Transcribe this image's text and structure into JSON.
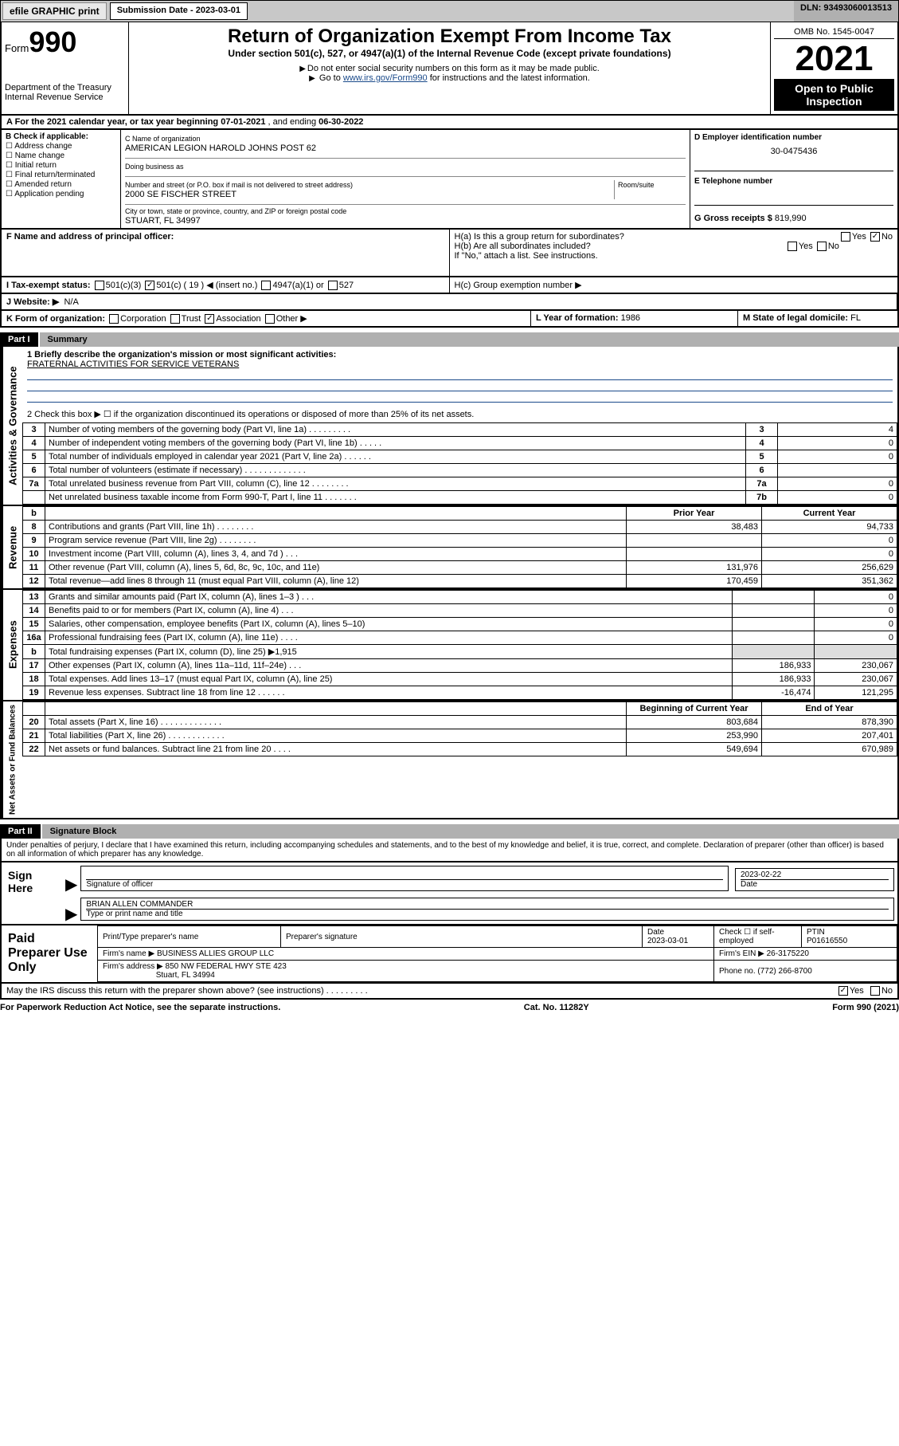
{
  "topbar": {
    "efile": "efile GRAPHIC print",
    "submission_label": "Submission Date - 2023-03-01",
    "dln": "DLN: 93493060013513"
  },
  "header": {
    "form_word": "Form",
    "form_num": "990",
    "dept": "Department of the Treasury",
    "irs": "Internal Revenue Service",
    "title": "Return of Organization Exempt From Income Tax",
    "subtitle": "Under section 501(c), 527, or 4947(a)(1) of the Internal Revenue Code (except private foundations)",
    "note1": "Do not enter social security numbers on this form as it may be made public.",
    "note2_a": "Go to ",
    "note2_link": "www.irs.gov/Form990",
    "note2_b": " for instructions and the latest information.",
    "omb": "OMB No. 1545-0047",
    "year": "2021",
    "open": "Open to Public Inspection"
  },
  "period": {
    "a": "A For the 2021 calendar year, or tax year beginning ",
    "begin": "07-01-2021",
    "mid": " , and ending ",
    "end": "06-30-2022"
  },
  "boxB": {
    "label": "B Check if applicable:",
    "items": [
      "Address change",
      "Name change",
      "Initial return",
      "Final return/terminated",
      "Amended return",
      "Application pending"
    ]
  },
  "boxC": {
    "name_lbl": "C Name of organization",
    "name": "AMERICAN LEGION HAROLD JOHNS POST 62",
    "dba_lbl": "Doing business as",
    "street_lbl": "Number and street (or P.O. box if mail is not delivered to street address)",
    "street": "2000 SE FISCHER STREET",
    "room_lbl": "Room/suite",
    "city_lbl": "City or town, state or province, country, and ZIP or foreign postal code",
    "city": "STUART, FL  34997"
  },
  "boxD": {
    "lbl": "D Employer identification number",
    "val": "30-0475436"
  },
  "boxE": {
    "lbl": "E Telephone number"
  },
  "boxG": {
    "lbl": "G Gross receipts $",
    "val": "819,990"
  },
  "boxF": {
    "lbl": "F Name and address of principal officer:"
  },
  "boxH": {
    "a": "H(a)  Is this a group return for subordinates?",
    "b": "H(b)  Are all subordinates included?",
    "b_note": "If \"No,\" attach a list. See instructions.",
    "c": "H(c)  Group exemption number ▶",
    "yes": "Yes",
    "no": "No"
  },
  "taxstatus": {
    "lbl": "I   Tax-exempt status:",
    "o1": "501(c)(3)",
    "o2": "501(c) ( 19 ) ◀ (insert no.)",
    "o3": "4947(a)(1) or",
    "o4": "527"
  },
  "website": {
    "lbl": "J   Website: ▶",
    "val": "N/A"
  },
  "boxK": {
    "lbl": "K Form of organization:",
    "o1": "Corporation",
    "o2": "Trust",
    "o3": "Association",
    "o4": "Other ▶"
  },
  "boxL": {
    "lbl": "L Year of formation:",
    "val": "1986"
  },
  "boxM": {
    "lbl": "M State of legal domicile:",
    "val": "FL"
  },
  "part1": {
    "tag": "Part I",
    "title": "Summary"
  },
  "mission": {
    "q": "1  Briefly describe the organization's mission or most significant activities:",
    "val": "FRATERNAL ACTIVITIES FOR SERVICE VETERANS",
    "q2": "2  Check this box ▶ ☐  if the organization discontinued its operations or disposed of more than 25% of its net assets."
  },
  "gov_rows": [
    {
      "n": "3",
      "t": "Number of voting members of the governing body (Part VI, line 1a)   .    .    .    .    .    .    .    .    .",
      "k": "3",
      "v": "4"
    },
    {
      "n": "4",
      "t": "Number of independent voting members of the governing body (Part VI, line 1b)  .    .    .    .    .",
      "k": "4",
      "v": "0"
    },
    {
      "n": "5",
      "t": "Total number of individuals employed in calendar year 2021 (Part V, line 2a)  .    .    .    .    .    .",
      "k": "5",
      "v": "0"
    },
    {
      "n": "6",
      "t": "Total number of volunteers (estimate if necessary)  .    .    .    .    .    .    .    .    .    .    .    .    .",
      "k": "6",
      "v": ""
    },
    {
      "n": "7a",
      "t": "Total unrelated business revenue from Part VIII, column (C), line 12  .    .    .    .    .    .    .    .",
      "k": "7a",
      "v": "0"
    },
    {
      "n": "",
      "t": "Net unrelated business taxable income from Form 990-T, Part I, line 11  .    .    .    .    .    .    .",
      "k": "7b",
      "v": "0"
    }
  ],
  "rev_hdr": {
    "b": "b",
    "py": "Prior Year",
    "cy": "Current Year"
  },
  "rev_rows": [
    {
      "n": "8",
      "t": "Contributions and grants (Part VIII, line 1h)   .    .    .    .    .    .    .    .",
      "py": "38,483",
      "cy": "94,733"
    },
    {
      "n": "9",
      "t": "Program service revenue (Part VIII, line 2g)   .    .    .    .    .    .    .    .",
      "py": "",
      "cy": "0"
    },
    {
      "n": "10",
      "t": "Investment income (Part VIII, column (A), lines 3, 4, and 7d )   .    .    .",
      "py": "",
      "cy": "0"
    },
    {
      "n": "11",
      "t": "Other revenue (Part VIII, column (A), lines 5, 6d, 8c, 9c, 10c, and 11e)",
      "py": "131,976",
      "cy": "256,629"
    },
    {
      "n": "12",
      "t": "Total revenue—add lines 8 through 11 (must equal Part VIII, column (A), line 12)",
      "py": "170,459",
      "cy": "351,362"
    }
  ],
  "exp_rows": [
    {
      "n": "13",
      "t": "Grants and similar amounts paid (Part IX, column (A), lines 1–3 )   .    .    .",
      "py": "",
      "cy": "0"
    },
    {
      "n": "14",
      "t": "Benefits paid to or for members (Part IX, column (A), line 4)   .    .    .",
      "py": "",
      "cy": "0"
    },
    {
      "n": "15",
      "t": "Salaries, other compensation, employee benefits (Part IX, column (A), lines 5–10)",
      "py": "",
      "cy": "0"
    },
    {
      "n": "16a",
      "t": "Professional fundraising fees (Part IX, column (A), line 11e)   .    .    .    .",
      "py": "",
      "cy": "0"
    },
    {
      "n": "b",
      "t": "Total fundraising expenses (Part IX, column (D), line 25) ▶1,915",
      "py": "",
      "cy": "",
      "shade": true
    },
    {
      "n": "17",
      "t": "Other expenses (Part IX, column (A), lines 11a–11d, 11f–24e)  .    .    .",
      "py": "186,933",
      "cy": "230,067"
    },
    {
      "n": "18",
      "t": "Total expenses. Add lines 13–17 (must equal Part IX, column (A), line 25)",
      "py": "186,933",
      "cy": "230,067"
    },
    {
      "n": "19",
      "t": "Revenue less expenses. Subtract line 18 from line 12  .    .    .    .    .    .",
      "py": "-16,474",
      "cy": "121,295"
    }
  ],
  "net_hdr": {
    "by": "Beginning of Current Year",
    "ey": "End of Year"
  },
  "net_rows": [
    {
      "n": "20",
      "t": "Total assets (Part X, line 16)  .    .    .    .    .    .    .    .    .    .    .    .    .",
      "py": "803,684",
      "cy": "878,390"
    },
    {
      "n": "21",
      "t": "Total liabilities (Part X, line 26)  .    .    .    .    .    .    .    .    .    .    .    .",
      "py": "253,990",
      "cy": "207,401"
    },
    {
      "n": "22",
      "t": "Net assets or fund balances. Subtract line 21 from line 20  .    .    .    .",
      "py": "549,694",
      "cy": "670,989"
    }
  ],
  "vlabels": {
    "gov": "Activities & Governance",
    "rev": "Revenue",
    "exp": "Expenses",
    "net": "Net Assets or Fund Balances"
  },
  "part2": {
    "tag": "Part II",
    "title": "Signature Block"
  },
  "penalty": "Under penalties of perjury, I declare that I have examined this return, including accompanying schedules and statements, and to the best of my knowledge and belief, it is true, correct, and complete. Declaration of preparer (other than officer) is based on all information of which preparer has any knowledge.",
  "sign": {
    "here": "Sign Here",
    "sig_lbl": "Signature of officer",
    "date": "2023-02-22",
    "date_lbl": "Date",
    "name": "BRIAN ALLEN  COMMANDER",
    "name_lbl": "Type or print name and title"
  },
  "prep": {
    "title": "Paid Preparer Use Only",
    "pt_lbl": "Print/Type preparer's name",
    "sig_lbl": "Preparer's signature",
    "date_lbl": "Date",
    "date": "2023-03-01",
    "check_lbl": "Check ☐ if self-employed",
    "ptin_lbl": "PTIN",
    "ptin": "P01616550",
    "firm_lbl": "Firm's name   ▶",
    "firm": "BUSINESS ALLIES GROUP LLC",
    "ein_lbl": "Firm's EIN ▶",
    "ein": "26-3175220",
    "addr_lbl": "Firm's address ▶",
    "addr1": "850 NW FEDERAL HWY STE 423",
    "addr2": "Stuart, FL  34994",
    "phone_lbl": "Phone no.",
    "phone": "(772) 266-8700"
  },
  "discuss": "May the IRS discuss this return with the preparer shown above? (see instructions)   .    .    .    .    .    .    .    .    .",
  "discuss_yes": "Yes",
  "discuss_no": "No",
  "footer": {
    "l": "For Paperwork Reduction Act Notice, see the separate instructions.",
    "m": "Cat. No. 11282Y",
    "r": "Form 990 (2021)"
  }
}
